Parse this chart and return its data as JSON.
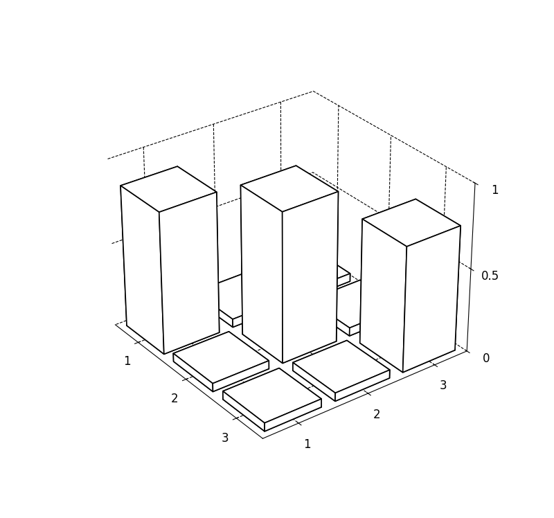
{
  "title": "",
  "xlabel": "",
  "ylabel": "",
  "zlabel": "",
  "xlim": [
    0.5,
    3.5
  ],
  "ylim": [
    0.5,
    3.5
  ],
  "zlim": [
    0,
    1
  ],
  "xticks": [
    1,
    2,
    3
  ],
  "yticks": [
    1,
    2,
    3
  ],
  "zticks": [
    0,
    0.5,
    1
  ],
  "bar_data": [
    [
      0.85,
      0.05,
      0.05
    ],
    [
      0.05,
      0.9,
      0.05
    ],
    [
      0.05,
      0.05,
      0.75
    ]
  ],
  "bar_width": 0.8,
  "bar_depth": 0.8,
  "bar_color": "#ffffff",
  "edge_color": "#000000",
  "background_color": "#ffffff",
  "elev": 30,
  "azim": -37,
  "tick_fontsize": 12,
  "linewidth": 1.2
}
